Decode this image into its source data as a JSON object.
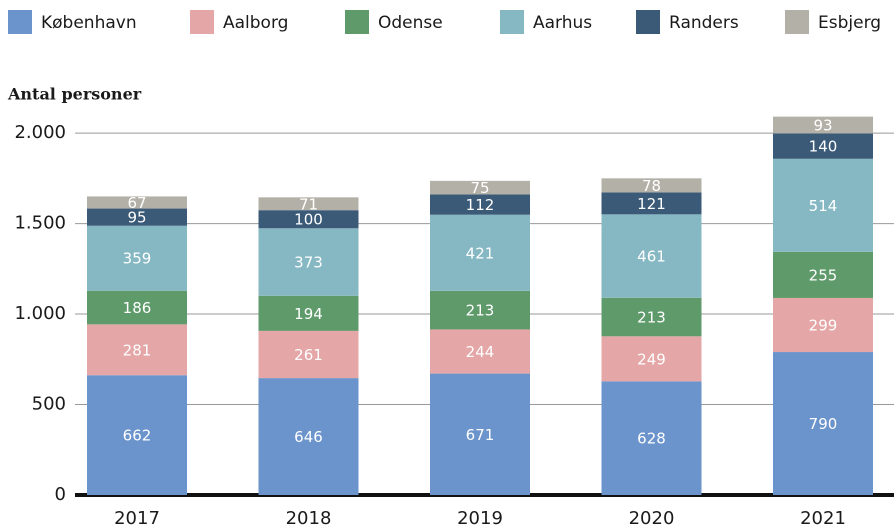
{
  "chart_data": {
    "type": "bar",
    "stacked": true,
    "y_label": "Antal personer",
    "categories": [
      "2017",
      "2018",
      "2019",
      "2020",
      "2021"
    ],
    "series": [
      {
        "name": "København",
        "color": "#6b93cc",
        "values": [
          662,
          646,
          671,
          628,
          790
        ]
      },
      {
        "name": "Aalborg",
        "color": "#e4a6a6",
        "values": [
          281,
          261,
          244,
          249,
          299
        ]
      },
      {
        "name": "Odense",
        "color": "#5f9a6b",
        "values": [
          186,
          194,
          213,
          213,
          255
        ]
      },
      {
        "name": "Aarhus",
        "color": "#86b8c4",
        "values": [
          359,
          373,
          421,
          461,
          514
        ]
      },
      {
        "name": "Randers",
        "color": "#3b5a78",
        "values": [
          95,
          100,
          112,
          121,
          140
        ]
      },
      {
        "name": "Esbjerg",
        "color": "#b3b0a7",
        "values": [
          67,
          71,
          75,
          78,
          93
        ]
      }
    ],
    "ylim": [
      0,
      2100
    ],
    "yticks": [
      0,
      500,
      {
        "value": 1000,
        "label": "1.000"
      },
      {
        "value": 1500,
        "label": "1.500"
      },
      {
        "value": 2000,
        "label": "2.000"
      }
    ],
    "grid": true,
    "legend": "top"
  }
}
